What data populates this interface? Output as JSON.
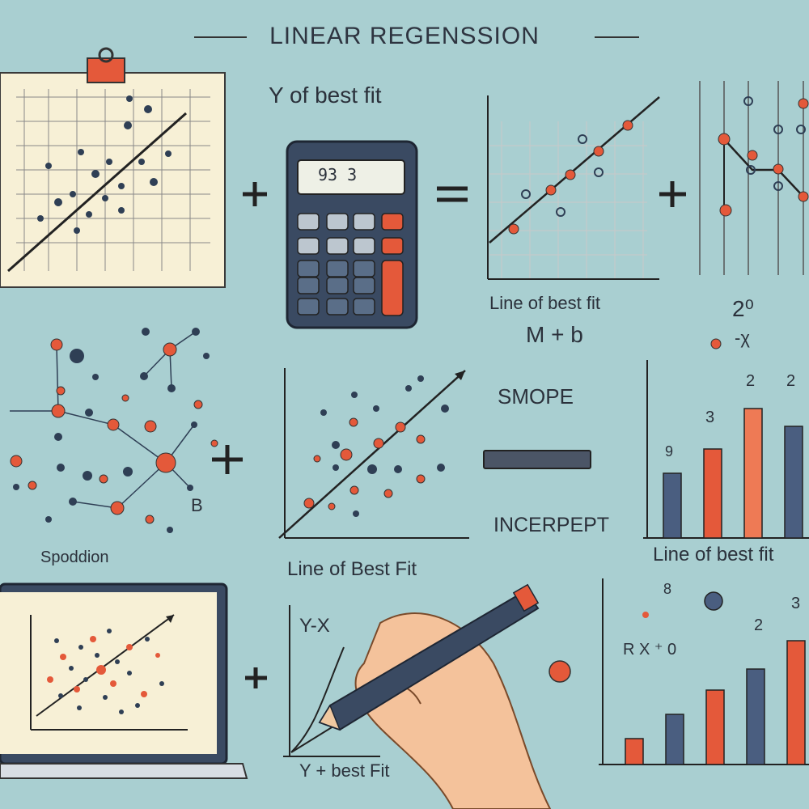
{
  "title": "LINEAR REGENSSION",
  "texts": {
    "y_best_fit": "Y  of best fit",
    "line_best_fit_1": "Line of best fit",
    "formula": "M + b",
    "exponent": "2⁰",
    "x_small": "-χ",
    "smope": "SMOPE",
    "incerpept": "INCERPEPT",
    "b": "B",
    "spoddion": "Spoddion",
    "line_best_fit_2": "Line of Best Fit",
    "line_best_fit_3": "Line of best fit",
    "yx": "Y-X",
    "y_best_fit_2": "Y + best Fit",
    "rx0": "R X ⁺ 0",
    "calc_display": "93 3",
    "bar_n1": "9",
    "bar_n2": "3",
    "bar_n3": "2",
    "bar_n4": "2",
    "bar_n5": "8",
    "bar_n6": "2",
    "bar_n7": "3"
  },
  "icons": [
    "clipboard-icon",
    "calculator-icon",
    "plus-icon",
    "equals-icon",
    "minus-icon",
    "pen-icon",
    "hand-icon",
    "laptop-icon"
  ],
  "colors": {
    "background": "#a9cfd1",
    "accent": "#e4593a",
    "navy": "#2f3f55",
    "paper": "#f7f0d6"
  }
}
